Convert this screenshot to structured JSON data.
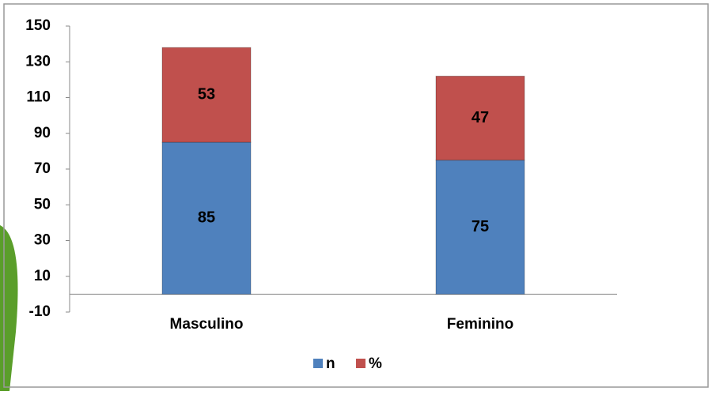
{
  "chart_data": {
    "type": "stacked-bar",
    "categories": [
      "Masculino",
      "Feminino"
    ],
    "series": [
      {
        "name": "n",
        "color": "#4f81bd",
        "values": [
          85,
          75
        ]
      },
      {
        "name": "%",
        "color": "#c0504d",
        "values": [
          53,
          47
        ]
      }
    ],
    "ylim": [
      -10,
      150
    ],
    "yticks": [
      -10,
      10,
      30,
      50,
      70,
      90,
      110,
      130,
      150
    ],
    "grid": false,
    "legend": "bottom",
    "data_labels": true
  }
}
